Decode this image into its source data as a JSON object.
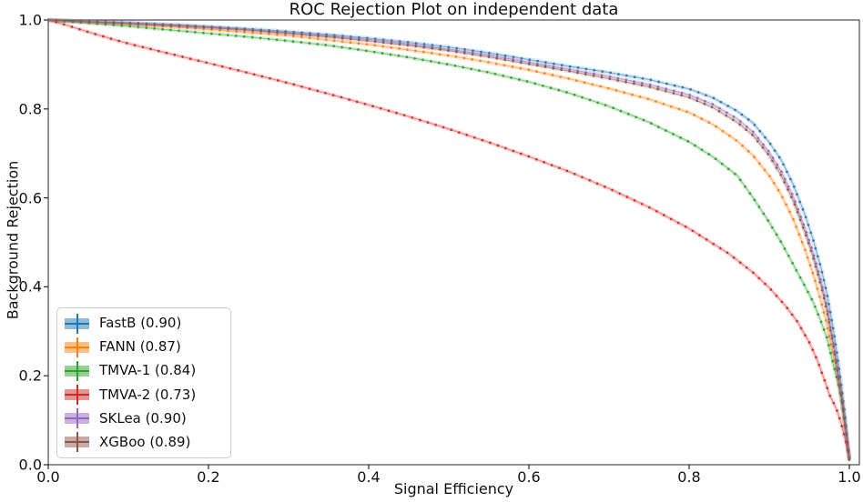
{
  "title": "ROC Rejection Plot on independent data",
  "axes": {
    "xlabel": "Signal Efficiency",
    "ylabel": "Background Rejection",
    "x_ticks": [
      "0.0",
      "0.2",
      "0.4",
      "0.6",
      "0.8",
      "1.0"
    ],
    "y_ticks": [
      "0.0",
      "0.2",
      "0.4",
      "0.6",
      "0.8",
      "1.0"
    ],
    "spine_color": "#262626",
    "text_color": "#111111"
  },
  "legend": {
    "position": "lower left",
    "entries": [
      "FastB (0.90)",
      "FANN (0.87)",
      "TMVA-1 (0.84)",
      "TMVA-2 (0.73)",
      "SKLea (0.90)",
      "XGBoo (0.89)"
    ]
  },
  "chart_data": {
    "type": "line",
    "title": "ROC Rejection Plot on independent data",
    "xlabel": "Signal Efficiency",
    "ylabel": "Background Rejection",
    "xlim": [
      0.0,
      1.0
    ],
    "ylim": [
      0.0,
      1.0
    ],
    "grid": false,
    "legend_position": "lower left",
    "series": [
      {
        "name": "FastB",
        "auc": 0.9,
        "legend_label": "FastB (0.90)",
        "color": "#1f77b4",
        "points": [
          [
            0,
            1.0
          ],
          [
            0.05,
            0.997
          ],
          [
            0.1,
            0.994
          ],
          [
            0.15,
            0.99
          ],
          [
            0.2,
            0.985
          ],
          [
            0.25,
            0.98
          ],
          [
            0.3,
            0.974
          ],
          [
            0.35,
            0.967
          ],
          [
            0.4,
            0.959
          ],
          [
            0.45,
            0.95
          ],
          [
            0.5,
            0.939
          ],
          [
            0.55,
            0.926
          ],
          [
            0.6,
            0.911
          ],
          [
            0.65,
            0.896
          ],
          [
            0.7,
            0.882
          ],
          [
            0.75,
            0.866
          ],
          [
            0.8,
            0.845
          ],
          [
            0.83,
            0.825
          ],
          [
            0.86,
            0.795
          ],
          [
            0.88,
            0.768
          ],
          [
            0.9,
            0.725
          ],
          [
            0.915,
            0.685
          ],
          [
            0.93,
            0.63
          ],
          [
            0.945,
            0.56
          ],
          [
            0.955,
            0.505
          ],
          [
            0.965,
            0.44
          ],
          [
            0.972,
            0.385
          ],
          [
            0.98,
            0.305
          ],
          [
            0.985,
            0.245
          ],
          [
            0.99,
            0.18
          ],
          [
            0.995,
            0.105
          ],
          [
            0.999,
            0.03
          ],
          [
            1.0,
            0.015
          ]
        ]
      },
      {
        "name": "FANN",
        "auc": 0.87,
        "legend_label": "FANN (0.87)",
        "color": "#ff7f0e",
        "points": [
          [
            0,
            1.0
          ],
          [
            0.05,
            0.995
          ],
          [
            0.1,
            0.99
          ],
          [
            0.15,
            0.985
          ],
          [
            0.2,
            0.979
          ],
          [
            0.25,
            0.972
          ],
          [
            0.3,
            0.965
          ],
          [
            0.35,
            0.955
          ],
          [
            0.4,
            0.945
          ],
          [
            0.45,
            0.933
          ],
          [
            0.5,
            0.92
          ],
          [
            0.55,
            0.905
          ],
          [
            0.6,
            0.888
          ],
          [
            0.65,
            0.868
          ],
          [
            0.7,
            0.846
          ],
          [
            0.75,
            0.822
          ],
          [
            0.8,
            0.792
          ],
          [
            0.83,
            0.765
          ],
          [
            0.86,
            0.728
          ],
          [
            0.88,
            0.695
          ],
          [
            0.9,
            0.65
          ],
          [
            0.915,
            0.607
          ],
          [
            0.93,
            0.552
          ],
          [
            0.945,
            0.482
          ],
          [
            0.955,
            0.428
          ],
          [
            0.965,
            0.365
          ],
          [
            0.972,
            0.315
          ],
          [
            0.98,
            0.245
          ],
          [
            0.985,
            0.2
          ],
          [
            0.99,
            0.148
          ],
          [
            0.995,
            0.082
          ],
          [
            0.999,
            0.026
          ],
          [
            1.0,
            0.012
          ]
        ]
      },
      {
        "name": "TMVA-1",
        "auc": 0.84,
        "legend_label": "TMVA-1 (0.84)",
        "color": "#2ca02c",
        "points": [
          [
            0,
            1.0
          ],
          [
            0.05,
            0.993
          ],
          [
            0.1,
            0.986
          ],
          [
            0.15,
            0.978
          ],
          [
            0.2,
            0.97
          ],
          [
            0.25,
            0.962
          ],
          [
            0.3,
            0.953
          ],
          [
            0.35,
            0.943
          ],
          [
            0.4,
            0.93
          ],
          [
            0.45,
            0.916
          ],
          [
            0.5,
            0.9
          ],
          [
            0.55,
            0.882
          ],
          [
            0.6,
            0.861
          ],
          [
            0.65,
            0.836
          ],
          [
            0.7,
            0.806
          ],
          [
            0.75,
            0.77
          ],
          [
            0.8,
            0.726
          ],
          [
            0.83,
            0.692
          ],
          [
            0.86,
            0.65
          ],
          [
            0.88,
            0.6
          ],
          [
            0.9,
            0.545
          ],
          [
            0.915,
            0.5
          ],
          [
            0.93,
            0.45
          ],
          [
            0.945,
            0.4
          ],
          [
            0.955,
            0.365
          ],
          [
            0.965,
            0.32
          ],
          [
            0.972,
            0.285
          ],
          [
            0.98,
            0.225
          ],
          [
            0.985,
            0.19
          ],
          [
            0.99,
            0.15
          ],
          [
            0.995,
            0.082
          ],
          [
            0.999,
            0.028
          ],
          [
            1.0,
            0.012
          ]
        ]
      },
      {
        "name": "TMVA-2",
        "auc": 0.73,
        "legend_label": "TMVA-2 (0.73)",
        "color": "#d62728",
        "points": [
          [
            0,
            1.0
          ],
          [
            0.02,
            0.99
          ],
          [
            0.05,
            0.973
          ],
          [
            0.08,
            0.957
          ],
          [
            0.1,
            0.947
          ],
          [
            0.15,
            0.925
          ],
          [
            0.2,
            0.903
          ],
          [
            0.25,
            0.881
          ],
          [
            0.3,
            0.858
          ],
          [
            0.35,
            0.834
          ],
          [
            0.4,
            0.809
          ],
          [
            0.45,
            0.783
          ],
          [
            0.5,
            0.755
          ],
          [
            0.55,
            0.725
          ],
          [
            0.6,
            0.693
          ],
          [
            0.65,
            0.659
          ],
          [
            0.7,
            0.621
          ],
          [
            0.75,
            0.579
          ],
          [
            0.8,
            0.531
          ],
          [
            0.85,
            0.474
          ],
          [
            0.88,
            0.432
          ],
          [
            0.9,
            0.398
          ],
          [
            0.92,
            0.358
          ],
          [
            0.935,
            0.322
          ],
          [
            0.95,
            0.275
          ],
          [
            0.96,
            0.235
          ],
          [
            0.97,
            0.185
          ],
          [
            0.975,
            0.158
          ],
          [
            0.98,
            0.14
          ],
          [
            0.985,
            0.12
          ],
          [
            0.99,
            0.092
          ],
          [
            0.995,
            0.055
          ],
          [
            0.999,
            0.025
          ],
          [
            1.0,
            0.012
          ]
        ]
      },
      {
        "name": "SKLea",
        "auc": 0.9,
        "legend_label": "SKLea (0.90)",
        "color": "#9467bd",
        "points": [
          [
            0,
            1.0
          ],
          [
            0.05,
            0.996
          ],
          [
            0.1,
            0.993
          ],
          [
            0.15,
            0.989
          ],
          [
            0.2,
            0.984
          ],
          [
            0.25,
            0.978
          ],
          [
            0.3,
            0.971
          ],
          [
            0.35,
            0.964
          ],
          [
            0.4,
            0.956
          ],
          [
            0.45,
            0.946
          ],
          [
            0.5,
            0.934
          ],
          [
            0.55,
            0.921
          ],
          [
            0.6,
            0.905
          ],
          [
            0.65,
            0.889
          ],
          [
            0.7,
            0.873
          ],
          [
            0.75,
            0.855
          ],
          [
            0.8,
            0.832
          ],
          [
            0.83,
            0.81
          ],
          [
            0.86,
            0.778
          ],
          [
            0.88,
            0.748
          ],
          [
            0.9,
            0.703
          ],
          [
            0.915,
            0.66
          ],
          [
            0.93,
            0.603
          ],
          [
            0.945,
            0.53
          ],
          [
            0.955,
            0.475
          ],
          [
            0.965,
            0.41
          ],
          [
            0.972,
            0.355
          ],
          [
            0.98,
            0.275
          ],
          [
            0.985,
            0.22
          ],
          [
            0.99,
            0.158
          ],
          [
            0.995,
            0.09
          ],
          [
            0.999,
            0.028
          ],
          [
            1.0,
            0.012
          ]
        ]
      },
      {
        "name": "XGBoo",
        "auc": 0.89,
        "legend_label": "XGBoo (0.89)",
        "color": "#8c564b",
        "points": [
          [
            0,
            1.0
          ],
          [
            0.05,
            0.996
          ],
          [
            0.1,
            0.992
          ],
          [
            0.15,
            0.988
          ],
          [
            0.2,
            0.983
          ],
          [
            0.25,
            0.977
          ],
          [
            0.3,
            0.97
          ],
          [
            0.35,
            0.962
          ],
          [
            0.4,
            0.953
          ],
          [
            0.45,
            0.943
          ],
          [
            0.5,
            0.931
          ],
          [
            0.55,
            0.917
          ],
          [
            0.6,
            0.901
          ],
          [
            0.65,
            0.885
          ],
          [
            0.7,
            0.868
          ],
          [
            0.75,
            0.85
          ],
          [
            0.8,
            0.826
          ],
          [
            0.83,
            0.803
          ],
          [
            0.86,
            0.77
          ],
          [
            0.88,
            0.74
          ],
          [
            0.9,
            0.695
          ],
          [
            0.915,
            0.65
          ],
          [
            0.93,
            0.593
          ],
          [
            0.945,
            0.52
          ],
          [
            0.955,
            0.465
          ],
          [
            0.965,
            0.4
          ],
          [
            0.972,
            0.345
          ],
          [
            0.98,
            0.268
          ],
          [
            0.985,
            0.213
          ],
          [
            0.99,
            0.152
          ],
          [
            0.995,
            0.085
          ],
          [
            0.999,
            0.026
          ],
          [
            1.0,
            0.01
          ]
        ]
      }
    ]
  }
}
